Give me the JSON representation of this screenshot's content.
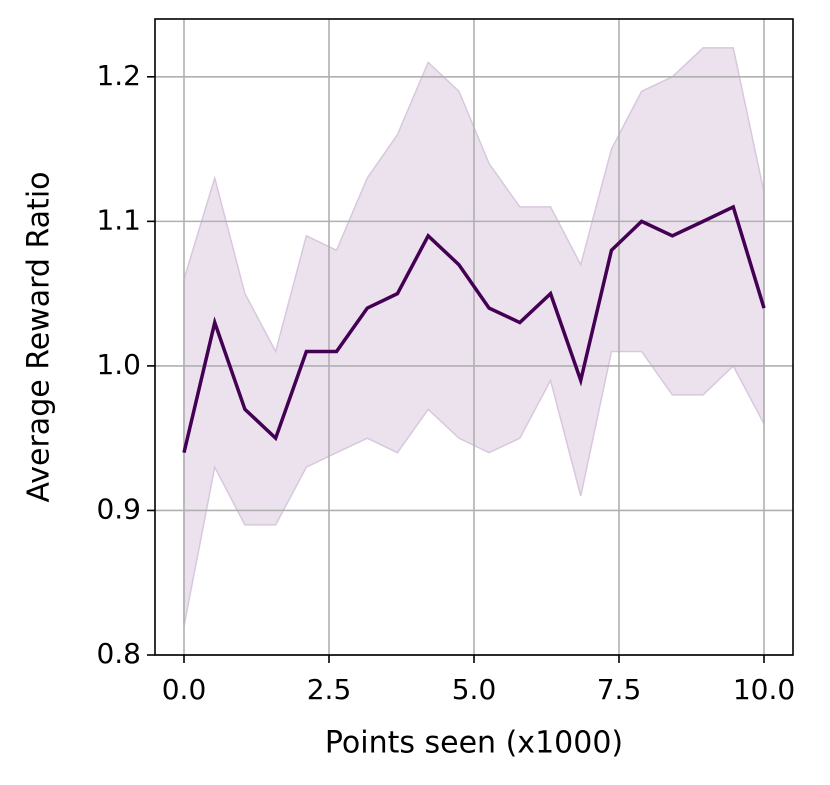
{
  "chart_data": {
    "type": "line",
    "xlabel": "Points seen (x1000)",
    "ylabel": "Average Reward Ratio",
    "x": [
      0,
      0.53,
      1.05,
      1.58,
      2.11,
      2.63,
      3.16,
      3.68,
      4.21,
      4.74,
      5.26,
      5.79,
      6.32,
      6.84,
      7.37,
      7.89,
      8.42,
      8.95,
      9.47,
      10.0
    ],
    "values": [
      0.94,
      1.03,
      0.97,
      0.95,
      1.01,
      1.01,
      1.04,
      1.05,
      1.09,
      1.07,
      1.04,
      1.03,
      1.05,
      0.99,
      1.08,
      1.1,
      1.09,
      1.1,
      1.11,
      1.04
    ],
    "upper": [
      1.06,
      1.13,
      1.05,
      1.01,
      1.09,
      1.08,
      1.13,
      1.16,
      1.21,
      1.19,
      1.14,
      1.11,
      1.11,
      1.07,
      1.15,
      1.19,
      1.2,
      1.22,
      1.22,
      1.12
    ],
    "lower": [
      0.82,
      0.93,
      0.89,
      0.89,
      0.93,
      0.94,
      0.95,
      0.94,
      0.97,
      0.95,
      0.94,
      0.95,
      0.99,
      0.91,
      1.01,
      1.01,
      0.98,
      0.98,
      1.0,
      0.96
    ],
    "color": "#440154",
    "band_color": "#ebe2ee",
    "xlim": [
      -0.5,
      10.5
    ],
    "ylim": [
      0.8,
      1.24
    ],
    "xticks": [
      {
        "value": 0,
        "label": "0.0"
      },
      2.5,
      {
        "value": 5,
        "label": "5.0"
      },
      7.5,
      {
        "value": 10,
        "label": "10.0"
      }
    ],
    "yticks": [
      0.8,
      0.9,
      {
        "value": 1,
        "label": "1.0"
      },
      1.1,
      1.2
    ],
    "grid": true
  }
}
